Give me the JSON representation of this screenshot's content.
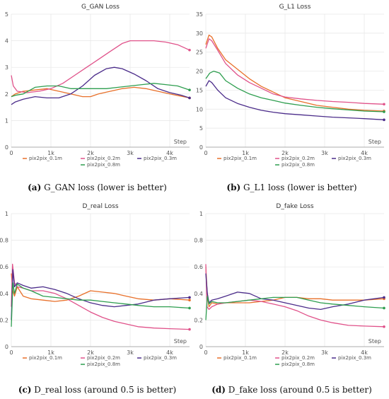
{
  "series_styles": [
    {
      "name": "pix2pix_0.1m",
      "color": "#E8702A"
    },
    {
      "name": "pix2pix_0.2m",
      "color": "#E0528A"
    },
    {
      "name": "pix2pix_0.3m",
      "color": "#4B2C8A"
    },
    {
      "name": "pix2pix_0.8m",
      "color": "#2E9E4F"
    }
  ],
  "chart_data": [
    {
      "type": "line",
      "title": "G_GAN Loss",
      "caption_letter": "(a)",
      "caption_text": " G_GAN loss (lower is better)",
      "xlabel": "Step",
      "xlim": [
        0,
        4500
      ],
      "ylim": [
        0,
        5
      ],
      "xticks": [
        {
          "v": 0,
          "t": "0"
        },
        {
          "v": 1000,
          "t": "1k"
        },
        {
          "v": 2000,
          "t": "2k"
        },
        {
          "v": 3000,
          "t": "3k"
        },
        {
          "v": 4000,
          "t": "4k"
        }
      ],
      "yticks": [
        {
          "v": 0,
          "t": "0"
        },
        {
          "v": 1,
          "t": "1"
        },
        {
          "v": 2,
          "t": "2"
        },
        {
          "v": 3,
          "t": "3"
        },
        {
          "v": 4,
          "t": "4"
        },
        {
          "v": 5,
          "t": "5"
        }
      ],
      "series": [
        {
          "name": "pix2pix_0.1m",
          "x": [
            0,
            100,
            300,
            600,
            900,
            1200,
            1500,
            1800,
            2000,
            2200,
            2500,
            2800,
            3100,
            3400,
            3700,
            4000,
            4500
          ],
          "y": [
            1.9,
            2.0,
            2.1,
            2.15,
            2.2,
            2.1,
            2.0,
            1.9,
            1.9,
            2.0,
            2.1,
            2.2,
            2.25,
            2.2,
            2.1,
            2.0,
            1.85
          ]
        },
        {
          "name": "pix2pix_0.2m",
          "x": [
            0,
            50,
            150,
            400,
            700,
            1000,
            1300,
            1600,
            1900,
            2200,
            2500,
            2800,
            3000,
            3300,
            3600,
            3900,
            4200,
            4500
          ],
          "y": [
            2.7,
            2.3,
            2.1,
            2.05,
            2.1,
            2.2,
            2.4,
            2.7,
            3.0,
            3.3,
            3.6,
            3.9,
            4.0,
            4.0,
            4.0,
            3.95,
            3.85,
            3.65
          ]
        },
        {
          "name": "pix2pix_0.3m",
          "x": [
            0,
            100,
            300,
            600,
            900,
            1200,
            1500,
            1800,
            2100,
            2400,
            2600,
            2800,
            3100,
            3400,
            3700,
            4000,
            4300,
            4500
          ],
          "y": [
            1.6,
            1.7,
            1.8,
            1.9,
            1.85,
            1.85,
            2.0,
            2.3,
            2.7,
            2.95,
            3.0,
            2.95,
            2.75,
            2.5,
            2.2,
            2.05,
            1.95,
            1.85
          ]
        },
        {
          "name": "pix2pix_0.8m",
          "x": [
            0,
            100,
            300,
            600,
            900,
            1200,
            1500,
            1800,
            2100,
            2400,
            2700,
            3000,
            3300,
            3600,
            3900,
            4200,
            4500
          ],
          "y": [
            1.9,
            1.95,
            2.0,
            2.25,
            2.3,
            2.3,
            2.2,
            2.2,
            2.2,
            2.2,
            2.25,
            2.3,
            2.35,
            2.4,
            2.35,
            2.3,
            2.15
          ]
        }
      ]
    },
    {
      "type": "line",
      "title": "G_L1 Loss",
      "caption_letter": "(b)",
      "caption_text": " G_L1 loss (lower is better)",
      "xlabel": "Step",
      "xlim": [
        0,
        4500
      ],
      "ylim": [
        0,
        35
      ],
      "xticks": [
        {
          "v": 0,
          "t": "0"
        },
        {
          "v": 1000,
          "t": "1k"
        },
        {
          "v": 2000,
          "t": "2k"
        },
        {
          "v": 3000,
          "t": "3k"
        },
        {
          "v": 4000,
          "t": "4k"
        }
      ],
      "yticks": [
        {
          "v": 0,
          "t": "0"
        },
        {
          "v": 5,
          "t": "5"
        },
        {
          "v": 10,
          "t": "10"
        },
        {
          "v": 15,
          "t": "15"
        },
        {
          "v": 20,
          "t": "20"
        },
        {
          "v": 25,
          "t": "25"
        },
        {
          "v": 30,
          "t": "30"
        },
        {
          "v": 35,
          "t": "35"
        }
      ],
      "series": [
        {
          "name": "pix2pix_0.1m",
          "x": [
            0,
            80,
            150,
            300,
            500,
            800,
            1100,
            1400,
            1700,
            2000,
            2400,
            2800,
            3200,
            3600,
            4000,
            4500
          ],
          "y": [
            27,
            29.5,
            29,
            26,
            23,
            20.5,
            18,
            16,
            14.5,
            13,
            12,
            11,
            10.5,
            10,
            9.7,
            9.5
          ]
        },
        {
          "name": "pix2pix_0.2m",
          "x": [
            0,
            80,
            150,
            300,
            500,
            800,
            1100,
            1400,
            1700,
            2000,
            2400,
            2800,
            3200,
            3600,
            4000,
            4500
          ],
          "y": [
            26,
            28.5,
            28,
            25.5,
            22,
            19,
            17,
            15.5,
            14,
            13.2,
            12.7,
            12.3,
            12,
            11.8,
            11.5,
            11.3
          ]
        },
        {
          "name": "pix2pix_0.3m",
          "x": [
            0,
            80,
            150,
            300,
            500,
            800,
            1100,
            1400,
            1700,
            2000,
            2400,
            2800,
            3200,
            3600,
            4000,
            4500
          ],
          "y": [
            16,
            17.5,
            17,
            15,
            13,
            11.5,
            10.5,
            9.7,
            9.2,
            8.8,
            8.5,
            8.2,
            7.9,
            7.7,
            7.5,
            7.2
          ]
        },
        {
          "name": "pix2pix_0.8m",
          "x": [
            0,
            100,
            200,
            350,
            500,
            800,
            1100,
            1400,
            1700,
            2000,
            2400,
            2800,
            3200,
            3600,
            4000,
            4500
          ],
          "y": [
            18,
            19.5,
            20,
            19.5,
            17.5,
            15.5,
            14,
            13,
            12.3,
            11.6,
            11,
            10.5,
            10.1,
            9.8,
            9.5,
            9.3
          ]
        }
      ]
    },
    {
      "type": "line",
      "title": "D_real Loss",
      "caption_letter": "(c)",
      "caption_text": " D_real loss (around 0.5 is better)",
      "xlabel": "Step",
      "xlim": [
        0,
        4500
      ],
      "ylim": [
        0,
        1
      ],
      "xticks": [
        {
          "v": 0,
          "t": "0"
        },
        {
          "v": 1000,
          "t": "1k"
        },
        {
          "v": 2000,
          "t": "2k"
        },
        {
          "v": 3000,
          "t": "3k"
        },
        {
          "v": 4000,
          "t": "4k"
        }
      ],
      "yticks": [
        {
          "v": 0,
          "t": "0"
        },
        {
          "v": 0.2,
          "t": "0.2"
        },
        {
          "v": 0.4,
          "t": "0.4"
        },
        {
          "v": 0.6,
          "t": "0.6"
        },
        {
          "v": 0.8,
          "t": "0.8"
        },
        {
          "v": 1,
          "t": "1"
        }
      ],
      "series": [
        {
          "name": "pix2pix_0.1m",
          "x": [
            0,
            40,
            80,
            150,
            300,
            500,
            800,
            1100,
            1400,
            1700,
            2000,
            2300,
            2600,
            2900,
            3200,
            3600,
            4000,
            4500
          ],
          "y": [
            0.55,
            0.42,
            0.38,
            0.45,
            0.38,
            0.36,
            0.35,
            0.34,
            0.35,
            0.38,
            0.42,
            0.41,
            0.4,
            0.38,
            0.36,
            0.35,
            0.36,
            0.35
          ]
        },
        {
          "name": "pix2pix_0.2m",
          "x": [
            0,
            30,
            80,
            150,
            300,
            500,
            800,
            1100,
            1400,
            1700,
            2000,
            2300,
            2600,
            2900,
            3200,
            3600,
            4000,
            4500
          ],
          "y": [
            0.3,
            0.62,
            0.48,
            0.45,
            0.44,
            0.42,
            0.42,
            0.4,
            0.36,
            0.31,
            0.26,
            0.22,
            0.19,
            0.17,
            0.15,
            0.14,
            0.135,
            0.13
          ]
        },
        {
          "name": "pix2pix_0.3m",
          "x": [
            0,
            40,
            80,
            150,
            300,
            500,
            800,
            1100,
            1400,
            1700,
            2000,
            2300,
            2600,
            2900,
            3200,
            3600,
            4000,
            4500
          ],
          "y": [
            0.2,
            0.58,
            0.45,
            0.48,
            0.46,
            0.44,
            0.45,
            0.43,
            0.4,
            0.36,
            0.33,
            0.31,
            0.3,
            0.31,
            0.32,
            0.35,
            0.36,
            0.37
          ]
        },
        {
          "name": "pix2pix_0.8m",
          "x": [
            0,
            40,
            80,
            150,
            300,
            500,
            800,
            1100,
            1400,
            1700,
            2000,
            2300,
            2600,
            2900,
            3200,
            3600,
            4000,
            4500
          ],
          "y": [
            0.15,
            0.48,
            0.4,
            0.47,
            0.44,
            0.42,
            0.38,
            0.37,
            0.36,
            0.35,
            0.35,
            0.34,
            0.33,
            0.32,
            0.31,
            0.3,
            0.3,
            0.29
          ]
        }
      ]
    },
    {
      "type": "line",
      "title": "D_fake Loss",
      "caption_letter": "(d)",
      "caption_text": " D_fake loss (around 0.5 is better)",
      "xlabel": "Step",
      "xlim": [
        0,
        4500
      ],
      "ylim": [
        0,
        1
      ],
      "xticks": [
        {
          "v": 0,
          "t": "0"
        },
        {
          "v": 1000,
          "t": "1k"
        },
        {
          "v": 2000,
          "t": "2k"
        },
        {
          "v": 3000,
          "t": "3k"
        },
        {
          "v": 4000,
          "t": "4k"
        }
      ],
      "yticks": [
        {
          "v": 0,
          "t": "0"
        },
        {
          "v": 0.2,
          "t": "0.2"
        },
        {
          "v": 0.4,
          "t": "0.4"
        },
        {
          "v": 0.6,
          "t": "0.6"
        },
        {
          "v": 0.8,
          "t": "0.8"
        },
        {
          "v": 1,
          "t": "1"
        }
      ],
      "series": [
        {
          "name": "pix2pix_0.1m",
          "x": [
            0,
            40,
            80,
            150,
            300,
            500,
            800,
            1100,
            1400,
            1700,
            2000,
            2300,
            2600,
            2900,
            3200,
            3600,
            4000,
            4500
          ],
          "y": [
            0.6,
            0.38,
            0.3,
            0.33,
            0.32,
            0.33,
            0.33,
            0.33,
            0.34,
            0.35,
            0.37,
            0.37,
            0.36,
            0.36,
            0.35,
            0.35,
            0.35,
            0.36
          ]
        },
        {
          "name": "pix2pix_0.2m",
          "x": [
            0,
            30,
            80,
            150,
            300,
            500,
            800,
            1100,
            1400,
            1700,
            2000,
            2300,
            2600,
            2900,
            3200,
            3600,
            4000,
            4500
          ],
          "y": [
            0.62,
            0.3,
            0.28,
            0.3,
            0.32,
            0.33,
            0.34,
            0.35,
            0.34,
            0.32,
            0.3,
            0.27,
            0.23,
            0.2,
            0.18,
            0.16,
            0.155,
            0.15
          ]
        },
        {
          "name": "pix2pix_0.3m",
          "x": [
            0,
            40,
            80,
            150,
            300,
            500,
            800,
            1100,
            1400,
            1700,
            2000,
            2300,
            2600,
            2900,
            3200,
            3600,
            4000,
            4500
          ],
          "y": [
            0.55,
            0.4,
            0.33,
            0.35,
            0.36,
            0.38,
            0.41,
            0.4,
            0.36,
            0.35,
            0.33,
            0.31,
            0.29,
            0.28,
            0.3,
            0.32,
            0.35,
            0.37
          ]
        },
        {
          "name": "pix2pix_0.8m",
          "x": [
            0,
            40,
            80,
            150,
            300,
            500,
            800,
            1100,
            1400,
            1700,
            2000,
            2300,
            2600,
            2900,
            3200,
            3600,
            4000,
            4500
          ],
          "y": [
            0.2,
            0.38,
            0.32,
            0.34,
            0.33,
            0.33,
            0.34,
            0.35,
            0.36,
            0.37,
            0.37,
            0.37,
            0.35,
            0.33,
            0.32,
            0.31,
            0.3,
            0.29
          ]
        }
      ]
    }
  ]
}
